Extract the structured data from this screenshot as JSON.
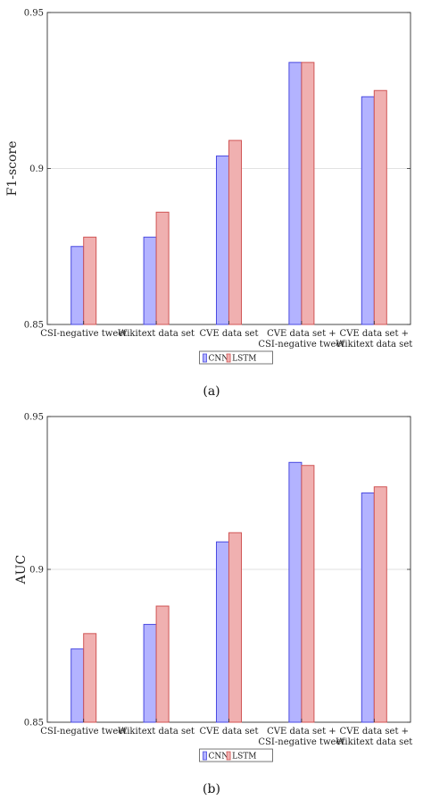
{
  "colors": {
    "cnn_fill": "#b3b3ff",
    "cnn_stroke": "#4a4ae0",
    "lstm_fill": "#f0b0b0",
    "lstm_stroke": "#d05555",
    "grid": "#d9d9d9",
    "axis": "#333333"
  },
  "chart_data": [
    {
      "type": "bar",
      "caption": "(a)",
      "ylabel": "F1-score",
      "ylim": [
        0.85,
        0.95
      ],
      "yticks": [
        "0.85",
        "0.9",
        "0.95"
      ],
      "grid": true,
      "legend_position": "bottom-center",
      "categories": [
        [
          "CSI-negative tweet"
        ],
        [
          "Wikitext data set"
        ],
        [
          "CVE data set"
        ],
        [
          "CVE data set +",
          "CSI-negative tweet"
        ],
        [
          "CVE data set +",
          "Wikitext data set"
        ]
      ],
      "series": [
        {
          "name": "CNN",
          "values": [
            0.875,
            0.878,
            0.904,
            0.934,
            0.923
          ]
        },
        {
          "name": "LSTM",
          "values": [
            0.878,
            0.886,
            0.909,
            0.934,
            0.925
          ]
        }
      ]
    },
    {
      "type": "bar",
      "caption": "(b)",
      "ylabel": "AUC",
      "ylim": [
        0.85,
        0.95
      ],
      "yticks": [
        "0.85",
        "0.9",
        "0.95"
      ],
      "grid": true,
      "legend_position": "bottom-center",
      "categories": [
        [
          "CSI-negative tweet"
        ],
        [
          "Wikitext data set"
        ],
        [
          "CVE data set"
        ],
        [
          "CVE data set +",
          "CSI-negative tweet"
        ],
        [
          "CVE data set +",
          "Wikitext data set"
        ]
      ],
      "series": [
        {
          "name": "CNN",
          "values": [
            0.874,
            0.882,
            0.909,
            0.935,
            0.925
          ]
        },
        {
          "name": "LSTM",
          "values": [
            0.879,
            0.888,
            0.912,
            0.934,
            0.927
          ]
        }
      ]
    }
  ]
}
